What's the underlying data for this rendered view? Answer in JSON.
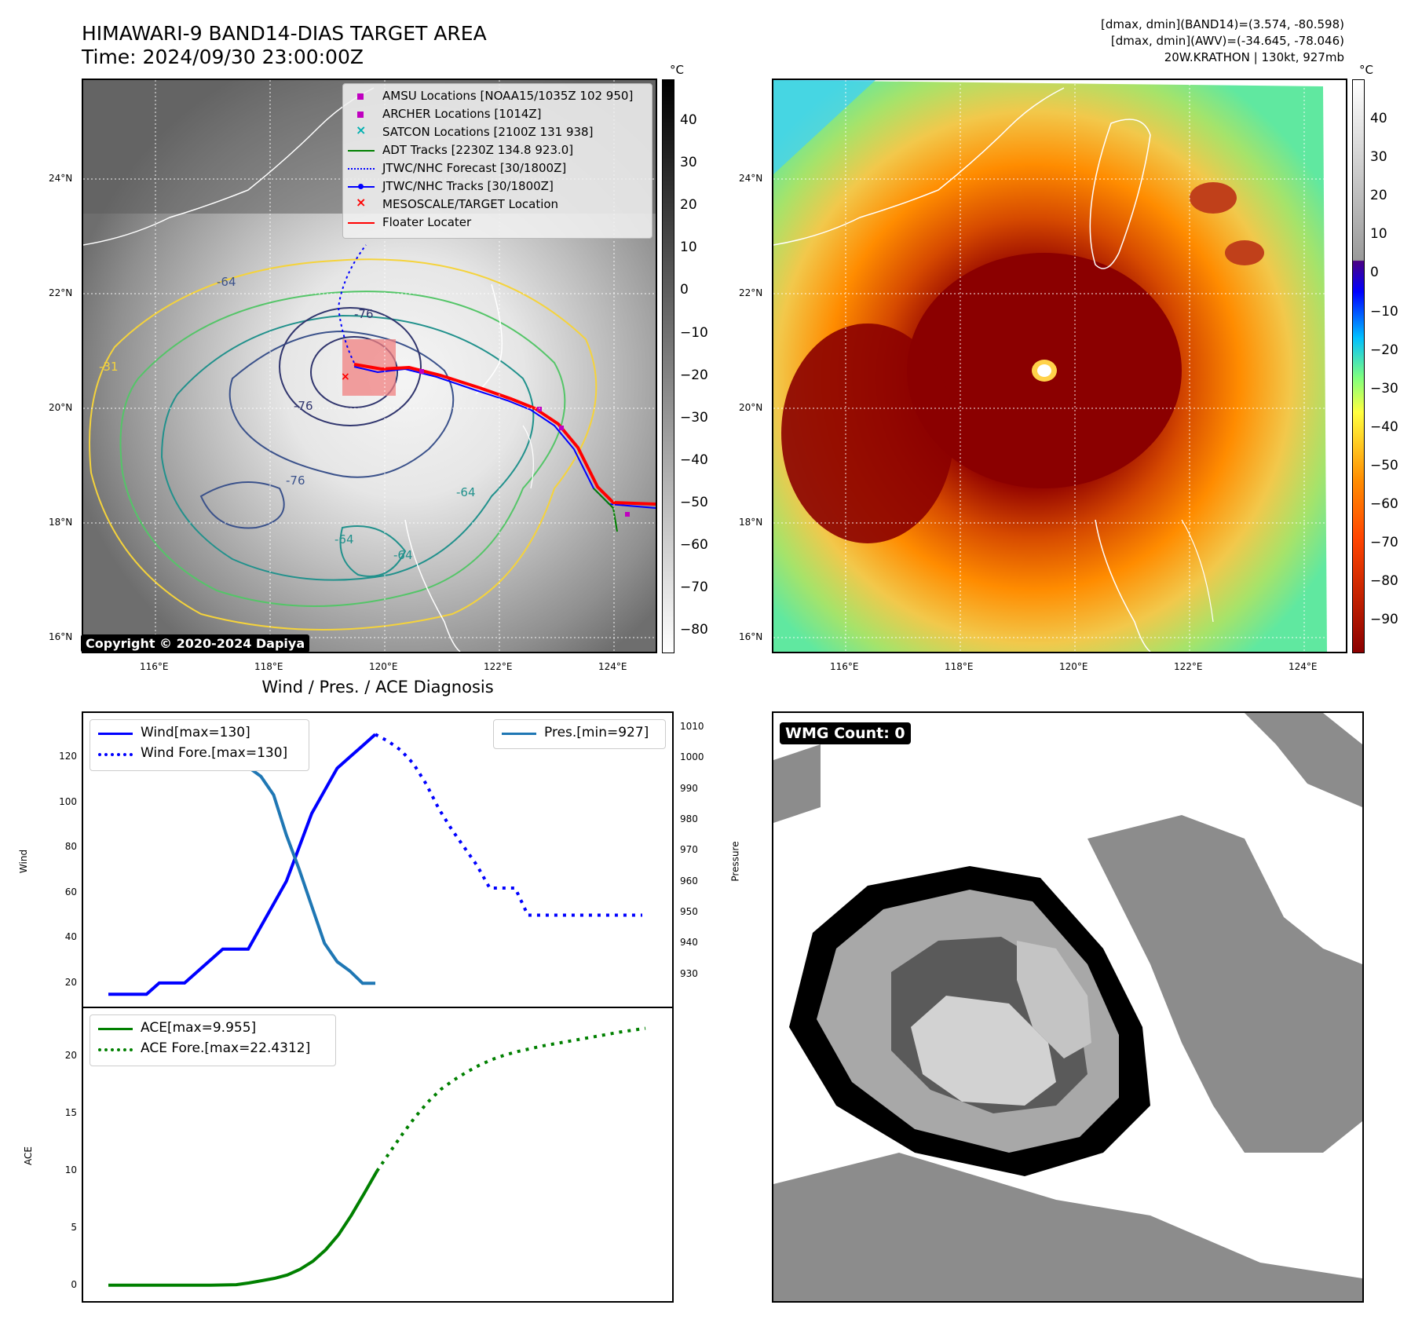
{
  "header": {
    "title_line1": "HIMAWARI-9 BAND14-DIAS TARGET AREA",
    "title_line2": "Time: 2024/09/30 23:00:00Z",
    "info_line1": "[dmax, dmin](BAND14)=(3.574, -80.598)",
    "info_line2": "[dmax, dmin](AWV)=(-34.645, -78.046)",
    "info_line3": "20W.KRATHON | 130kt, 927mb"
  },
  "map": {
    "lat_labels": [
      "24°N",
      "22°N",
      "20°N",
      "18°N",
      "16°N"
    ],
    "lon_labels": [
      "116°E",
      "118°E",
      "120°E",
      "122°E",
      "124°E"
    ],
    "copyright": "Copyright © 2020-2024 Dapiya",
    "contour_labels": [
      "-64",
      "-76",
      "-76",
      "-76",
      "-31",
      "-64",
      "-64",
      "-64"
    ],
    "colors": {
      "contour_outer": "#f5d33b",
      "contour_mid": "#54c568",
      "contour_teal": "#21918c",
      "contour_blue": "#3b528b",
      "contour_inner": "#31366e",
      "track_red": "#ff0000",
      "track_blue": "#0000ff",
      "amsu": "#c000c0",
      "satcon": "#00b0b0",
      "adt": "#008000"
    }
  },
  "legend": {
    "items": [
      {
        "label": "AMSU Locations [NOAA15/1035Z 102 950]",
        "marker": "square-magenta"
      },
      {
        "label": "ARCHER Locations [1014Z]",
        "marker": "square-magenta"
      },
      {
        "label": "SATCON Locations [2100Z 131 938]",
        "marker": "x-cyan"
      },
      {
        "label": "ADT Tracks [2230Z 134.8 923.0]",
        "marker": "line-green"
      },
      {
        "label": "JTWC/NHC Forecast [30/1800Z]",
        "marker": "dotted-blue"
      },
      {
        "label": "JTWC/NHC Tracks [30/1800Z]",
        "marker": "line-dot-blue"
      },
      {
        "label": "MESOSCALE/TARGET Location",
        "marker": "x-red"
      },
      {
        "label": "Floater Locater",
        "marker": "line-red"
      }
    ]
  },
  "colorbar_gray": {
    "unit": "°C",
    "ticks": [
      "40",
      "30",
      "20",
      "10",
      "0",
      "−10",
      "−20",
      "−30",
      "−40",
      "−50",
      "−60",
      "−70",
      "−80"
    ]
  },
  "colorbar_color": {
    "unit": "°C",
    "ticks": [
      "40",
      "30",
      "20",
      "10",
      "0",
      "−10",
      "−20",
      "−30",
      "−40",
      "−50",
      "−60",
      "−70",
      "−80",
      "−90"
    ]
  },
  "diagnosis": {
    "title": "Wind / Pres. / ACE Diagnosis",
    "wind_ylabel": "Wind",
    "pres_ylabel": "Pressure",
    "ace_ylabel": "ACE",
    "legend_wind": "Wind[max=130]",
    "legend_wind_fore": "Wind Fore.[max=130]",
    "legend_pres": "Pres.[min=927]",
    "legend_ace": "ACE[max=9.955]",
    "legend_ace_fore": "ACE Fore.[max=22.4312]"
  },
  "wmg": {
    "label": "WMG Count: 0"
  },
  "chart_data": [
    {
      "type": "line",
      "title": "Wind / Pres. / ACE Diagnosis",
      "ylabel": "Wind",
      "ylim": [
        13,
        136
      ],
      "y_ticks": [
        20,
        40,
        60,
        80,
        100,
        120
      ],
      "series": [
        {
          "name": "Wind[max=130]",
          "color": "#0000ff",
          "style": "solid",
          "x": [
            0,
            1,
            2,
            3,
            4,
            5,
            6,
            7,
            8,
            9,
            10,
            11,
            12,
            13,
            14,
            15,
            16,
            17,
            18,
            19,
            20,
            21
          ],
          "values": [
            15,
            15,
            15,
            15,
            20,
            20,
            20,
            25,
            30,
            35,
            35,
            35,
            45,
            55,
            65,
            80,
            95,
            105,
            115,
            120,
            125,
            130
          ]
        },
        {
          "name": "Wind Fore.[max=130]",
          "color": "#0000ff",
          "style": "dotted",
          "x": [
            21,
            22,
            23,
            24,
            25,
            26,
            27,
            28,
            29,
            30,
            31,
            32,
            33,
            34,
            35,
            36,
            37,
            38,
            39,
            40,
            41,
            42
          ],
          "values": [
            130,
            127,
            123,
            117,
            108,
            97,
            88,
            80,
            72,
            62,
            62,
            62,
            50,
            50,
            50,
            50,
            50,
            50,
            50,
            50,
            50,
            50
          ]
        }
      ]
    },
    {
      "type": "line",
      "ylabel": "Pressure",
      "ylim": [
        922,
        1012
      ],
      "y_ticks": [
        930,
        940,
        950,
        960,
        970,
        980,
        990,
        1000,
        1010
      ],
      "series": [
        {
          "name": "Pres.[min=927]",
          "color": "#1f77b4",
          "style": "solid",
          "x": [
            0,
            1,
            2,
            3,
            4,
            5,
            6,
            7,
            8,
            9,
            10,
            11,
            12,
            13,
            14,
            15,
            16,
            17,
            18,
            19,
            20,
            21
          ],
          "values": [
            1008,
            1008,
            1008,
            1006,
            1004,
            1004,
            1002,
            1001,
            1000,
            1000,
            999,
            997,
            994,
            988,
            975,
            964,
            952,
            940,
            934,
            931,
            927,
            927
          ]
        }
      ]
    },
    {
      "type": "line",
      "ylabel": "ACE",
      "ylim": [
        -0.7,
        23.5
      ],
      "y_ticks": [
        0,
        5,
        10,
        15,
        20
      ],
      "series": [
        {
          "name": "ACE[max=9.955]",
          "color": "#008000",
          "style": "solid",
          "x": [
            0,
            2,
            4,
            6,
            8,
            10,
            11,
            12,
            13,
            14,
            15,
            16,
            17,
            18,
            19,
            20,
            21
          ],
          "values": [
            0,
            0,
            0,
            0,
            0,
            0.05,
            0.2,
            0.4,
            0.6,
            0.9,
            1.4,
            2.1,
            3.1,
            4.4,
            6.1,
            8.0,
            9.955
          ]
        },
        {
          "name": "ACE Fore.[max=22.4312]",
          "color": "#008000",
          "style": "dotted",
          "x": [
            21,
            22,
            23,
            24,
            25,
            26,
            27,
            28,
            29,
            30,
            31,
            32,
            34,
            36,
            38,
            40,
            42
          ],
          "values": [
            9.955,
            11.6,
            13.2,
            14.7,
            16.0,
            17.1,
            17.9,
            18.6,
            19.2,
            19.7,
            20.1,
            20.4,
            20.9,
            21.3,
            21.7,
            22.1,
            22.4312
          ]
        }
      ]
    }
  ]
}
